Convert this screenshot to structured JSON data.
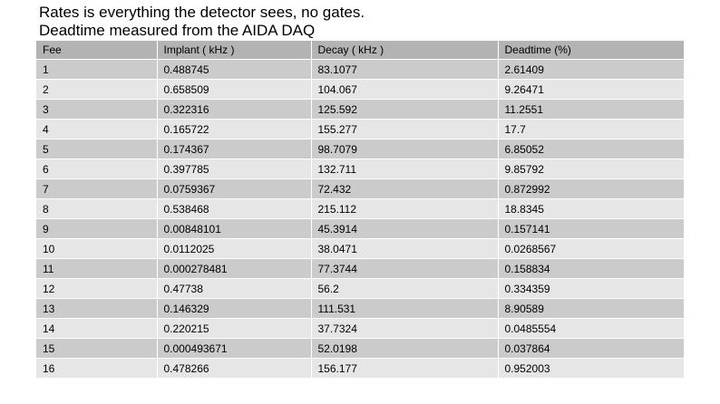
{
  "title": {
    "line1": "Rates is everything the detector sees, no gates.",
    "line2": "Deadtime measured from the AIDA DAQ"
  },
  "table": {
    "headers": [
      "Fee",
      "Implant ( kHz )",
      "Decay ( kHz )",
      "Deadtime (%)"
    ],
    "rows": [
      [
        "1",
        "0.488745",
        "83.1077",
        "2.61409"
      ],
      [
        "2",
        "0.658509",
        "104.067",
        "9.26471"
      ],
      [
        "3",
        "0.322316",
        "125.592",
        "11.2551"
      ],
      [
        "4",
        "0.165722",
        "155.277",
        "17.7"
      ],
      [
        "5",
        "0.174367",
        "98.7079",
        "6.85052"
      ],
      [
        "6",
        "0.397785",
        "132.711",
        "9.85792"
      ],
      [
        "7",
        "0.0759367",
        "72.432",
        "0.872992"
      ],
      [
        "8",
        "0.538468",
        "215.112",
        "18.8345"
      ],
      [
        "9",
        "0.00848101",
        "45.3914",
        "0.157141"
      ],
      [
        "10",
        "0.0112025",
        "38.0471",
        "0.0268567"
      ],
      [
        "11",
        "0.000278481",
        "77.3744",
        "0.158834"
      ],
      [
        "12",
        "0.47738",
        "56.2",
        "0.334359"
      ],
      [
        "13",
        "0.146329",
        "111.531",
        "8.90589"
      ],
      [
        "14",
        "0.220215",
        "37.7324",
        "0.0485554"
      ],
      [
        "15",
        "0.000493671",
        "52.0198",
        "0.037864"
      ],
      [
        "16",
        "0.478266",
        "156.177",
        "0.952003"
      ]
    ]
  },
  "colors": {
    "header_bg": "#b3b3b3",
    "row_odd_bg": "#cbcbcb",
    "row_even_bg": "#e6e6e6"
  }
}
